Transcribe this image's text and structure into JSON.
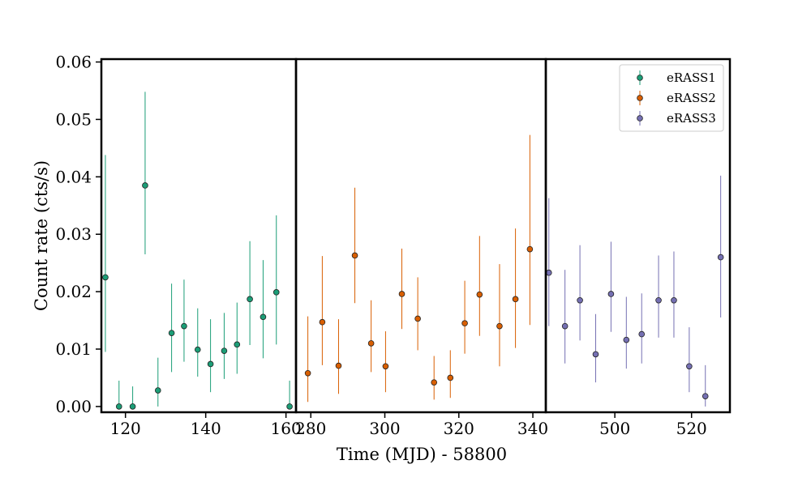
{
  "chart_data": {
    "type": "scatter",
    "title": "",
    "xlabel": "Time (MJD) - 58800",
    "ylabel": "Count rate (cts/s)",
    "ylim": [
      -0.001,
      0.0605
    ],
    "yticks": [
      0.0,
      0.01,
      0.02,
      0.03,
      0.04,
      0.05,
      0.06
    ],
    "ytick_labels": [
      "0.00",
      "0.01",
      "0.02",
      "0.03",
      "0.04",
      "0.05",
      "0.06"
    ],
    "grid": false,
    "legend_position": "top-right",
    "panels": [
      {
        "series_name": "eRASS1",
        "xlim": [
          114,
          162.5
        ],
        "xticks": [
          120,
          140,
          160
        ],
        "xtick_labels": [
          "120",
          "140",
          "160"
        ]
      },
      {
        "series_name": "eRASS2",
        "xlim": [
          276,
          343.5
        ],
        "xticks": [
          280,
          300,
          320,
          340
        ],
        "xtick_labels": [
          "280",
          "300",
          "320",
          "340"
        ]
      },
      {
        "series_name": "eRASS3",
        "xlim": [
          482,
          530
        ],
        "xticks": [
          500,
          520
        ],
        "xtick_labels": [
          "500",
          "520"
        ]
      }
    ],
    "series": [
      {
        "name": "eRASS1",
        "color": "#1b9e77",
        "x": [
          115.0,
          118.4,
          121.8,
          124.9,
          128.1,
          131.5,
          134.6,
          138.0,
          141.2,
          144.6,
          147.8,
          151.0,
          154.3,
          157.6,
          160.9
        ],
        "y": [
          0.0225,
          0.0,
          0.0,
          0.0385,
          0.0028,
          0.0128,
          0.014,
          0.0099,
          0.0074,
          0.0097,
          0.0108,
          0.0187,
          0.0156,
          0.0199,
          0.0
        ],
        "yerr_low": [
          0.0095,
          0.0,
          0.0,
          0.0265,
          0.0,
          0.006,
          0.0078,
          0.0052,
          0.0025,
          0.0048,
          0.0057,
          0.0107,
          0.0084,
          0.0108,
          0.0
        ],
        "yerr_high": [
          0.0438,
          0.0045,
          0.0035,
          0.0548,
          0.0085,
          0.0214,
          0.0221,
          0.0171,
          0.0152,
          0.0163,
          0.0181,
          0.0288,
          0.0255,
          0.0333,
          0.0045
        ]
      },
      {
        "name": "eRASS2",
        "color": "#d95f02",
        "x": [
          279.2,
          283.1,
          287.5,
          291.9,
          296.3,
          300.2,
          304.6,
          308.9,
          313.3,
          317.7,
          321.6,
          325.6,
          331.0,
          335.3,
          339.2
        ],
        "y": [
          0.0058,
          0.0147,
          0.0071,
          0.0263,
          0.011,
          0.007,
          0.0196,
          0.0153,
          0.0042,
          0.005,
          0.0145,
          0.0195,
          0.014,
          0.0187,
          0.0274
        ],
        "yerr_low": [
          0.0008,
          0.0072,
          0.0022,
          0.018,
          0.006,
          0.0025,
          0.0135,
          0.0098,
          0.0012,
          0.0015,
          0.0092,
          0.0123,
          0.007,
          0.0102,
          0.0142
        ],
        "yerr_high": [
          0.0157,
          0.0262,
          0.0152,
          0.0381,
          0.0185,
          0.0131,
          0.0275,
          0.0225,
          0.0088,
          0.0098,
          0.0219,
          0.0297,
          0.0248,
          0.031,
          0.0473
        ]
      },
      {
        "name": "eRASS3",
        "color": "#7570b3",
        "x": [
          482.8,
          487.0,
          490.9,
          495.0,
          499.0,
          503.0,
          507.0,
          511.4,
          515.4,
          519.4,
          523.6,
          527.6
        ],
        "y": [
          0.0233,
          0.014,
          0.0185,
          0.0091,
          0.0196,
          0.0116,
          0.0126,
          0.0185,
          0.0185,
          0.007,
          0.0018,
          0.026
        ],
        "yerr_low": [
          0.014,
          0.0075,
          0.0115,
          0.0042,
          0.013,
          0.0066,
          0.0075,
          0.012,
          0.012,
          0.0025,
          0.0,
          0.0155
        ],
        "yerr_high": [
          0.0363,
          0.0238,
          0.0281,
          0.0161,
          0.0287,
          0.0191,
          0.0197,
          0.0263,
          0.027,
          0.0138,
          0.0072,
          0.0402
        ]
      }
    ]
  }
}
